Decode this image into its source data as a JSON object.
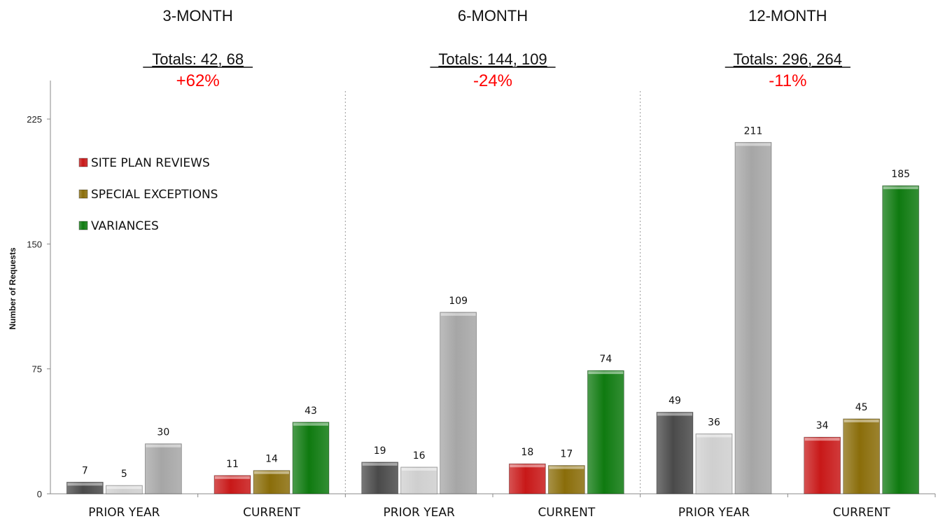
{
  "chart_data": {
    "type": "bar",
    "ylabel": "Number of Requests",
    "ylim": [
      0,
      237
    ],
    "yticks": [
      0,
      75,
      150,
      225
    ],
    "legend": {
      "placement": "upper-left",
      "entries": [
        {
          "name": "SITE PLAN REVIEWS",
          "color": "#c81818"
        },
        {
          "name": "SPECIAL EXCEPTIONS",
          "color": "#8a6d0a"
        },
        {
          "name": "VARIANCES",
          "color": "#0f7a10"
        }
      ]
    },
    "panels": [
      {
        "title": "3-MONTH",
        "totals": "Totals: 42, 68",
        "change": "+62%",
        "groups": [
          {
            "label": "PRIOR YEAR",
            "values": [
              7,
              5,
              30
            ]
          },
          {
            "label": "CURRENT",
            "values": [
              11,
              14,
              43
            ]
          }
        ]
      },
      {
        "title": "6-MONTH",
        "totals": "Totals: 144, 109",
        "change": "-24%",
        "groups": [
          {
            "label": "PRIOR YEAR",
            "values": [
              19,
              16,
              109
            ]
          },
          {
            "label": "CURRENT",
            "values": [
              18,
              17,
              74
            ]
          }
        ]
      },
      {
        "title": "12-MONTH",
        "totals": "Totals: 296, 264",
        "change": "-11%",
        "groups": [
          {
            "label": "PRIOR YEAR",
            "values": [
              49,
              36,
              211
            ]
          },
          {
            "label": "CURRENT",
            "values": [
              34,
              45,
              185
            ]
          }
        ]
      }
    ],
    "colors": {
      "prior": [
        "#4a4a4a",
        "#cfcfcf",
        "#a6a6a6"
      ],
      "current": [
        "#c81818",
        "#8a6d0a",
        "#0f7a10"
      ]
    },
    "grid": false
  }
}
